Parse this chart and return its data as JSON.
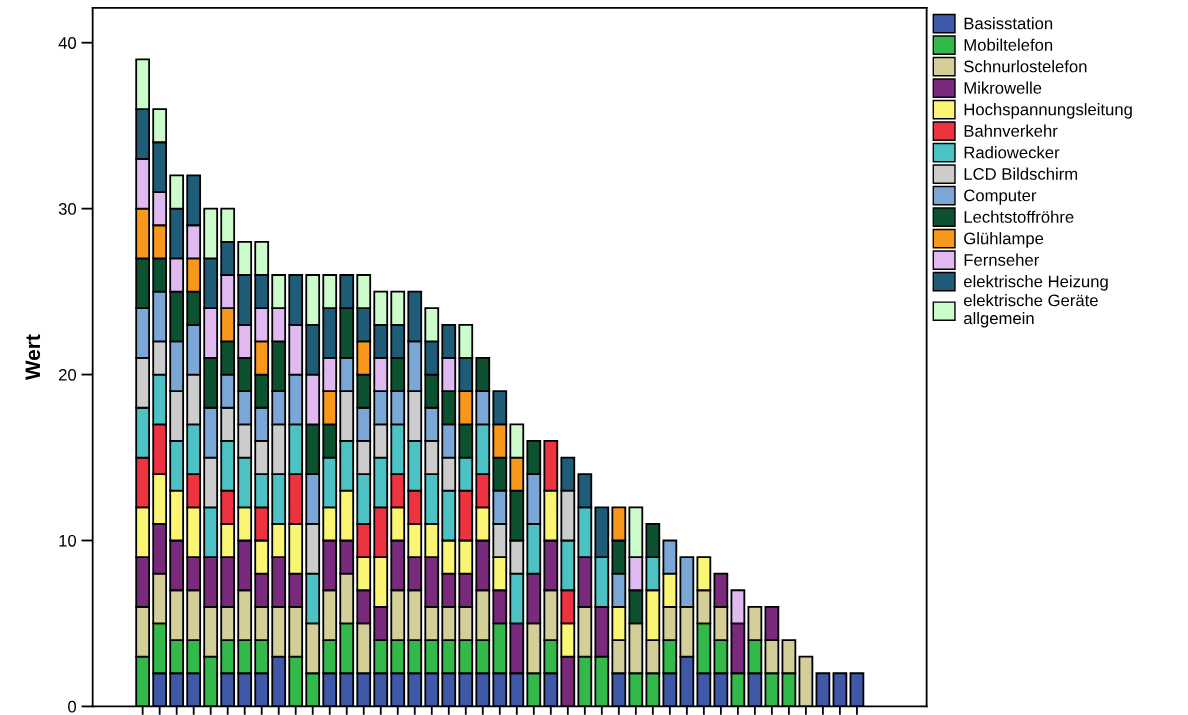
{
  "chart_data": {
    "type": "bar",
    "stacked": true,
    "ylabel": "Wert",
    "ylim": [
      0,
      42.1
    ],
    "yticks": [
      0,
      10,
      20,
      30,
      40
    ],
    "grid": false,
    "legend": "top right",
    "tick_labels": "y",
    "categories": [
      null,
      null,
      null,
      null,
      null,
      null,
      null,
      null,
      null,
      null,
      null,
      null,
      null,
      null,
      null,
      null,
      null,
      null,
      null,
      null,
      null,
      null,
      null,
      null,
      null,
      null,
      null,
      null,
      null,
      null,
      null,
      null,
      null,
      null,
      null,
      null,
      null,
      null,
      null,
      null,
      null,
      null,
      null
    ],
    "series": [
      {
        "name": "Basisstation",
        "color": "#3f58a8",
        "values": [
          null,
          2,
          2,
          2,
          null,
          2,
          2,
          2,
          3,
          null,
          null,
          2,
          2,
          2,
          2,
          2,
          2,
          2,
          2,
          2,
          2,
          2,
          2,
          null,
          2,
          null,
          null,
          null,
          2,
          null,
          null,
          2,
          3,
          2,
          2,
          null,
          2,
          null,
          null,
          null,
          2,
          2,
          2
        ]
      },
      {
        "name": "Mobiltelefon",
        "color": "#33b84a",
        "values": [
          3,
          3,
          2,
          2,
          3,
          2,
          2,
          2,
          null,
          3,
          2,
          2,
          3,
          null,
          2,
          2,
          2,
          2,
          2,
          2,
          2,
          3,
          null,
          2,
          2,
          null,
          3,
          3,
          null,
          2,
          2,
          2,
          null,
          3,
          2,
          2,
          2,
          2,
          2,
          null,
          null,
          null,
          null
        ]
      },
      {
        "name": "Schnurlostelefon",
        "color": "#d4cf98",
        "values": [
          3,
          3,
          3,
          3,
          3,
          2,
          3,
          2,
          3,
          3,
          3,
          3,
          3,
          3,
          null,
          3,
          3,
          2,
          2,
          2,
          3,
          null,
          null,
          3,
          3,
          null,
          3,
          null,
          2,
          3,
          2,
          2,
          3,
          2,
          2,
          null,
          2,
          2,
          2,
          3,
          null,
          null,
          null
        ]
      },
      {
        "name": "Mikrowelle",
        "color": "#7a2a7c",
        "values": [
          3,
          3,
          3,
          2,
          3,
          3,
          3,
          2,
          3,
          2,
          null,
          3,
          2,
          2,
          2,
          3,
          2,
          3,
          2,
          2,
          3,
          2,
          3,
          3,
          3,
          3,
          3,
          3,
          null,
          null,
          null,
          null,
          null,
          null,
          2,
          3,
          null,
          2,
          null,
          null,
          null,
          null,
          null
        ]
      },
      {
        "name": "Hochspannungsleitung",
        "color": "#fbf574",
        "values": [
          3,
          3,
          3,
          3,
          null,
          2,
          2,
          2,
          2,
          3,
          null,
          2,
          3,
          2,
          3,
          2,
          2,
          2,
          2,
          2,
          2,
          2,
          null,
          null,
          3,
          2,
          null,
          null,
          2,
          null,
          3,
          2,
          null,
          2,
          null,
          null,
          null,
          null,
          null,
          null,
          null,
          null,
          null
        ]
      },
      {
        "name": "Bahnverkehr",
        "color": "#ee3340",
        "values": [
          3,
          3,
          null,
          2,
          null,
          2,
          null,
          2,
          null,
          3,
          null,
          null,
          null,
          2,
          3,
          2,
          2,
          null,
          null,
          3,
          2,
          null,
          null,
          null,
          3,
          2,
          null,
          null,
          null,
          null,
          null,
          null,
          null,
          null,
          null,
          null,
          null,
          null,
          null,
          null,
          null,
          null,
          null
        ]
      },
      {
        "name": "Radiowecker",
        "color": "#4cc2c4",
        "values": [
          3,
          3,
          3,
          3,
          3,
          3,
          3,
          2,
          3,
          3,
          3,
          3,
          3,
          3,
          3,
          3,
          3,
          3,
          3,
          2,
          3,
          null,
          3,
          3,
          null,
          3,
          3,
          3,
          null,
          null,
          2,
          null,
          null,
          null,
          null,
          null,
          null,
          null,
          null,
          null,
          null,
          null,
          null
        ]
      },
      {
        "name": "LCD Bildschirm",
        "color": "#cccccc",
        "values": [
          3,
          2,
          3,
          3,
          3,
          2,
          2,
          2,
          3,
          null,
          3,
          null,
          3,
          2,
          2,
          null,
          3,
          2,
          2,
          null,
          null,
          2,
          2,
          null,
          null,
          3,
          null,
          null,
          null,
          null,
          null,
          null,
          null,
          null,
          null,
          null,
          null,
          null,
          null,
          null,
          null,
          null,
          null
        ]
      },
      {
        "name": "Computer",
        "color": "#7ba7d6",
        "values": [
          3,
          3,
          3,
          3,
          3,
          2,
          2,
          2,
          2,
          3,
          3,
          null,
          2,
          2,
          2,
          2,
          3,
          2,
          2,
          null,
          2,
          2,
          null,
          3,
          null,
          null,
          null,
          null,
          2,
          null,
          null,
          2,
          3,
          null,
          null,
          null,
          null,
          null,
          null,
          null,
          null,
          null,
          null
        ]
      },
      {
        "name": "Lechtstoffröhre",
        "color": "#0c5230",
        "values": [
          3,
          2,
          3,
          2,
          3,
          2,
          2,
          2,
          3,
          null,
          3,
          2,
          3,
          2,
          null,
          2,
          null,
          2,
          2,
          2,
          2,
          2,
          3,
          2,
          null,
          null,
          null,
          null,
          2,
          2,
          2,
          null,
          null,
          null,
          null,
          null,
          null,
          null,
          null,
          null,
          null,
          null,
          null
        ]
      },
      {
        "name": "Glühlampe",
        "color": "#f7981d",
        "values": [
          3,
          2,
          null,
          2,
          null,
          2,
          null,
          2,
          null,
          null,
          null,
          2,
          null,
          2,
          null,
          null,
          null,
          null,
          null,
          2,
          null,
          2,
          2,
          null,
          null,
          null,
          null,
          null,
          2,
          null,
          null,
          null,
          null,
          null,
          null,
          null,
          null,
          null,
          null,
          null,
          null,
          null,
          null
        ]
      },
      {
        "name": "Fernseher",
        "color": "#dfb9ef",
        "values": [
          3,
          2,
          2,
          2,
          3,
          2,
          2,
          2,
          2,
          3,
          3,
          2,
          null,
          null,
          2,
          null,
          null,
          null,
          2,
          null,
          null,
          null,
          null,
          null,
          null,
          null,
          null,
          null,
          null,
          2,
          null,
          null,
          null,
          null,
          null,
          2,
          null,
          null,
          null,
          null,
          null,
          null,
          null
        ]
      },
      {
        "name": "elektrische Heizung",
        "color": "#1e5c78",
        "values": [
          3,
          3,
          3,
          3,
          3,
          2,
          3,
          2,
          null,
          3,
          3,
          3,
          2,
          2,
          2,
          2,
          3,
          2,
          2,
          2,
          null,
          2,
          null,
          null,
          null,
          2,
          2,
          3,
          null,
          null,
          null,
          null,
          null,
          null,
          null,
          null,
          null,
          null,
          null,
          null,
          null,
          null,
          null
        ]
      },
      {
        "name": "elektrische Geräte\nallgemein",
        "color": "#ccfccc",
        "values": [
          3,
          2,
          2,
          null,
          3,
          2,
          2,
          2,
          2,
          null,
          3,
          2,
          null,
          2,
          2,
          2,
          null,
          2,
          null,
          2,
          null,
          null,
          2,
          null,
          null,
          null,
          null,
          null,
          null,
          3,
          null,
          null,
          null,
          null,
          null,
          null,
          null,
          null,
          null,
          null,
          null,
          null,
          null
        ]
      }
    ]
  }
}
